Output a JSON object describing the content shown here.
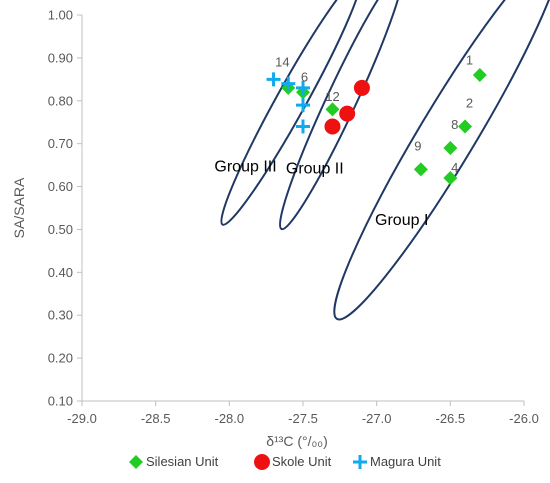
{
  "chart_data": {
    "type": "scatter",
    "xlabel": "δ¹³C (°/₀₀)",
    "ylabel": "SA/SARA",
    "xlim": [
      -29.0,
      -26.0
    ],
    "ylim": [
      0.1,
      1.0
    ],
    "x_ticks": [
      "-29.0",
      "-28.5",
      "-28.0",
      "-27.5",
      "-27.0",
      "-26.5",
      "-26.0"
    ],
    "y_ticks": [
      "0.10",
      "0.20",
      "0.30",
      "0.40",
      "0.50",
      "0.60",
      "0.70",
      "0.80",
      "0.90",
      "1.00"
    ],
    "grid": false,
    "legend_position": "bottom",
    "series": [
      {
        "name": "Silesian Unit",
        "marker": "diamond",
        "color": "#22cc22",
        "points": [
          {
            "x": -26.3,
            "y": 0.86
          },
          {
            "x": -26.4,
            "y": 0.74
          },
          {
            "x": -26.5,
            "y": 0.69
          },
          {
            "x": -26.5,
            "y": 0.62
          },
          {
            "x": -26.7,
            "y": 0.64
          },
          {
            "x": -27.3,
            "y": 0.78
          },
          {
            "x": -27.6,
            "y": 0.83
          },
          {
            "x": -27.5,
            "y": 0.82
          }
        ]
      },
      {
        "name": "Skole Unit",
        "marker": "circle",
        "color": "#ee1111",
        "points": [
          {
            "x": -27.1,
            "y": 0.83
          },
          {
            "x": -27.2,
            "y": 0.77
          },
          {
            "x": -27.3,
            "y": 0.74
          }
        ]
      },
      {
        "name": "Magura Unit",
        "marker": "plus",
        "color": "#11aaee",
        "points": [
          {
            "x": -27.7,
            "y": 0.85
          },
          {
            "x": -27.6,
            "y": 0.84
          },
          {
            "x": -27.5,
            "y": 0.83
          },
          {
            "x": -27.5,
            "y": 0.79
          },
          {
            "x": -27.5,
            "y": 0.74
          }
        ]
      }
    ],
    "point_labels": [
      {
        "text": "1",
        "x": -26.37,
        "y": 0.895
      },
      {
        "text": "2",
        "x": -26.37,
        "y": 0.795
      },
      {
        "text": "8",
        "x": -26.47,
        "y": 0.745
      },
      {
        "text": "9",
        "x": -26.72,
        "y": 0.695
      },
      {
        "text": "4",
        "x": -26.47,
        "y": 0.645
      },
      {
        "text": "12",
        "x": -27.3,
        "y": 0.81
      },
      {
        "text": "6",
        "x": -27.49,
        "y": 0.855
      },
      {
        "text": "14",
        "x": -27.64,
        "y": 0.89
      }
    ],
    "groups": [
      {
        "label": "Group I",
        "cx": -26.52,
        "cy": 0.72,
        "rx": 0.5,
        "ry": 0.19,
        "angle": -59,
        "label_x": -26.83,
        "label_y": 0.51
      },
      {
        "label": "Group II",
        "cx": -27.24,
        "cy": 0.8,
        "rx": 0.33,
        "ry": 0.1,
        "angle": -65,
        "label_x": -27.42,
        "label_y": 0.63
      },
      {
        "label": "Group III",
        "cx": -27.58,
        "cy": 0.8,
        "rx": 0.33,
        "ry": 0.1,
        "angle": -61,
        "label_x": -27.89,
        "label_y": 0.635
      }
    ]
  }
}
